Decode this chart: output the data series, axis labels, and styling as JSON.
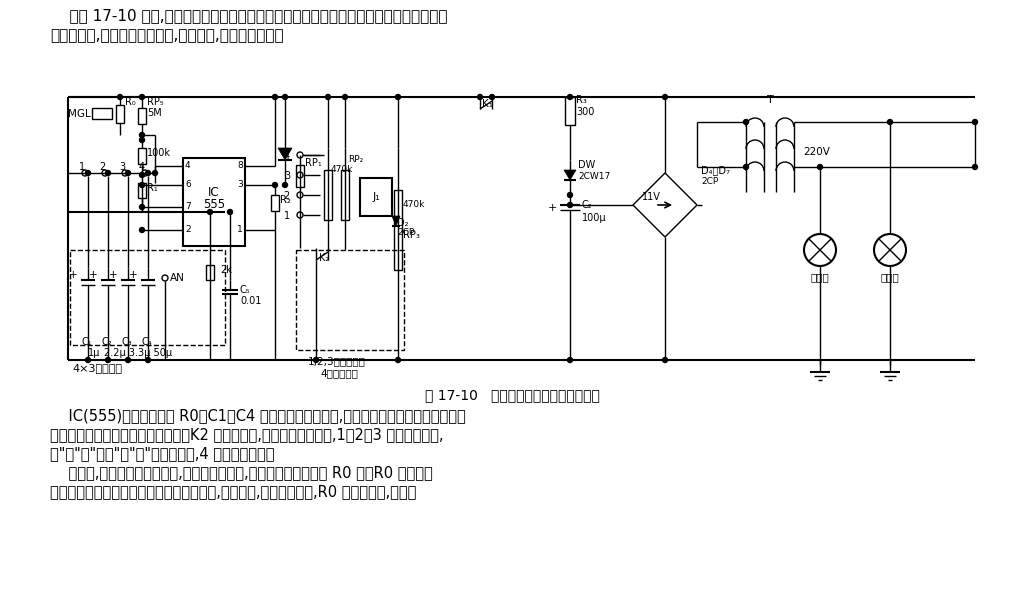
{
  "header1": "    如图 17-10 所示,控制仪电路包括降压整流电路、单稳延时和继电控制电路。该控制仪在",
  "header2": "放大照片时,能根据底片的薄厚,自动检测,决定曝光时间。",
  "caption": "图 17-10   放大曝光时间自动控制仪电路",
  "footer1": "    IC(555)和光敏检测头 R0、C1～C4 等组成单稳定时电路,定时大小取决于电路的充放电时",
  "footer2": "间常数。光敏检测头采用光敏电阻。K2 为拨动开关,设有四种曝光方式,1、2、3 档为自动控制,",
  "footer3": "分\"亮\"、\"正常\"、\"暗\"三种曝光量,4 档为手动控制。",
  "footer4": "    曝光时,光线通过底片、镜头,照射到放大纸上,再反射至光敏检测头 R0 上。R0 将按照反",
  "footer5": "射光的强弱决定曝光时间的长短。底片厚者,透光率低,相纸反射光弱,R0 呈现电阻大,定时电",
  "bg": "#ffffff",
  "fg": "#000000"
}
